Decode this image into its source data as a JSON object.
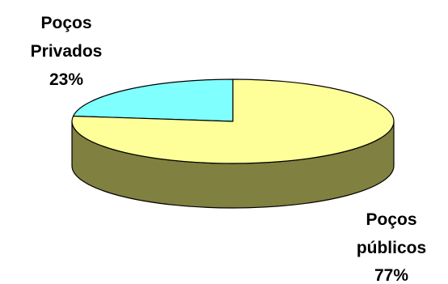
{
  "chart_data": {
    "type": "pie",
    "style": "3d",
    "slices": [
      {
        "label_lines": [
          "Poços",
          "Privados"
        ],
        "percent_text": "23%",
        "value": 23,
        "color": "#80ffff"
      },
      {
        "label_lines": [
          "Poços",
          "públicos"
        ],
        "percent_text": "77%",
        "value": 77,
        "color": "#ffff99"
      }
    ],
    "side_color": "#808040",
    "legend": "none"
  }
}
